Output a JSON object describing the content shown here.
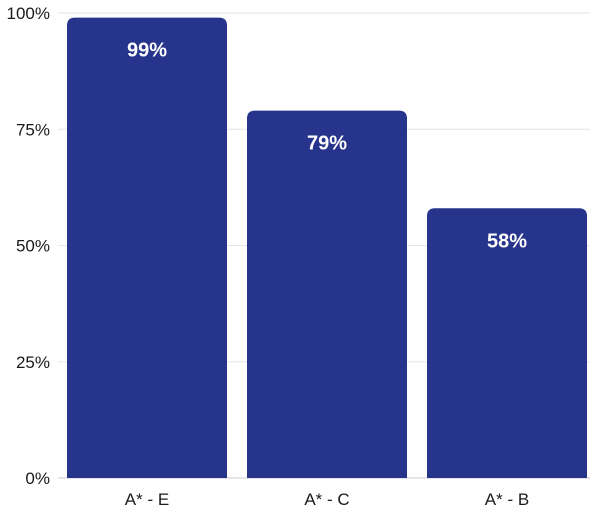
{
  "chart_data": {
    "type": "bar",
    "categories": [
      "A* - E",
      "A* - C",
      "A* - B"
    ],
    "values": [
      99,
      79,
      58
    ],
    "data_labels": [
      "99%",
      "79%",
      "58%"
    ],
    "ylim": [
      0,
      100
    ],
    "yticks": [
      0,
      25,
      50,
      75,
      100
    ],
    "ytick_labels": [
      "0%",
      "25%",
      "50%",
      "75%",
      "100%"
    ],
    "grid": true,
    "bar_color": "#27348b",
    "label_color": "#ffffff"
  }
}
